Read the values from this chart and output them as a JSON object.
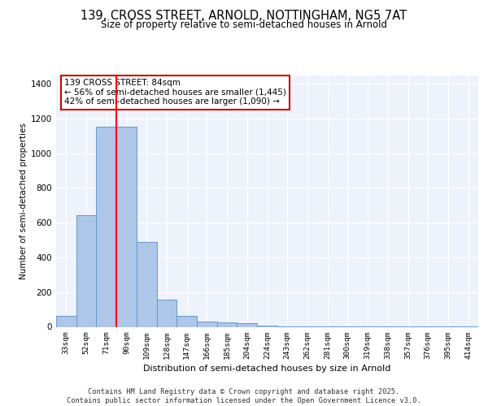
{
  "title_line1": "139, CROSS STREET, ARNOLD, NOTTINGHAM, NG5 7AT",
  "title_line2": "Size of property relative to semi-detached houses in Arnold",
  "xlabel": "Distribution of semi-detached houses by size in Arnold",
  "ylabel": "Number of semi-detached properties",
  "bar_labels": [
    "33sqm",
    "52sqm",
    "71sqm",
    "90sqm",
    "109sqm",
    "128sqm",
    "147sqm",
    "166sqm",
    "185sqm",
    "204sqm",
    "224sqm",
    "243sqm",
    "262sqm",
    "281sqm",
    "300sqm",
    "319sqm",
    "338sqm",
    "357sqm",
    "376sqm",
    "395sqm",
    "414sqm"
  ],
  "bar_values": [
    65,
    645,
    1155,
    1155,
    490,
    155,
    65,
    30,
    25,
    20,
    5,
    3,
    2,
    2,
    2,
    1,
    1,
    1,
    1,
    1,
    1
  ],
  "bar_color": "#aec6e8",
  "bar_edge_color": "#6699cc",
  "background_color": "#eef2fb",
  "grid_color": "#ffffff",
  "annotation_box_color": "#cc0000",
  "annotation_text": "139 CROSS STREET: 84sqm\n← 56% of semi-detached houses are smaller (1,445)\n42% of semi-detached houses are larger (1,090) →",
  "red_line_x": 2.5,
  "ylim": [
    0,
    1450
  ],
  "yticks": [
    0,
    200,
    400,
    600,
    800,
    1000,
    1200,
    1400
  ],
  "footer_line1": "Contains HM Land Registry data © Crown copyright and database right 2025.",
  "footer_line2": "Contains public sector information licensed under the Open Government Licence v3.0."
}
